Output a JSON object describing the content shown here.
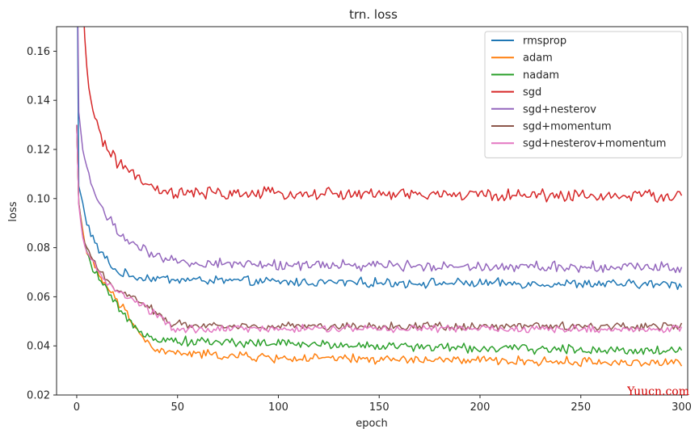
{
  "chart_data": {
    "type": "line",
    "title": "trn. loss",
    "xlabel": "epoch",
    "ylabel": "loss",
    "xlim": [
      -10,
      303
    ],
    "ylim": [
      0.02,
      0.17
    ],
    "x_ticks": [
      0,
      50,
      100,
      150,
      200,
      250,
      300
    ],
    "y_ticks": [
      0.02,
      0.04,
      0.06,
      0.08,
      0.1,
      0.12,
      0.14,
      0.16
    ],
    "y_tick_labels": [
      "0.02",
      "0.04",
      "0.06",
      "0.08",
      "0.10",
      "0.12",
      "0.14",
      "0.16"
    ],
    "legend_position": "top-right",
    "grid": false,
    "series": [
      {
        "name": "rmsprop",
        "color": "#1f77b4",
        "start": 0.22,
        "anchors": [
          [
            1,
            0.105
          ],
          [
            3,
            0.098
          ],
          [
            5,
            0.09
          ],
          [
            10,
            0.08
          ],
          [
            15,
            0.075
          ],
          [
            20,
            0.07
          ],
          [
            30,
            0.068
          ],
          [
            50,
            0.067
          ],
          [
            100,
            0.066
          ],
          [
            200,
            0.0655
          ],
          [
            300,
            0.065
          ]
        ],
        "noise": 0.0015
      },
      {
        "name": "adam",
        "color": "#ff7f0e",
        "start": 0.13,
        "anchors": [
          [
            1,
            0.098
          ],
          [
            3,
            0.087
          ],
          [
            5,
            0.078
          ],
          [
            10,
            0.07
          ],
          [
            15,
            0.064
          ],
          [
            20,
            0.058
          ],
          [
            25,
            0.053
          ],
          [
            30,
            0.047
          ],
          [
            35,
            0.041
          ],
          [
            40,
            0.038
          ],
          [
            50,
            0.037
          ],
          [
            100,
            0.035
          ],
          [
            200,
            0.034
          ],
          [
            300,
            0.033
          ]
        ],
        "noise": 0.0015
      },
      {
        "name": "nadam",
        "color": "#2ca02c",
        "start": 0.13,
        "anchors": [
          [
            1,
            0.098
          ],
          [
            3,
            0.085
          ],
          [
            5,
            0.077
          ],
          [
            10,
            0.069
          ],
          [
            15,
            0.062
          ],
          [
            20,
            0.056
          ],
          [
            25,
            0.05
          ],
          [
            30,
            0.047
          ],
          [
            40,
            0.043
          ],
          [
            50,
            0.042
          ],
          [
            100,
            0.041
          ],
          [
            200,
            0.039
          ],
          [
            300,
            0.038
          ]
        ],
        "noise": 0.0015
      },
      {
        "name": "sgd",
        "color": "#d62728",
        "start": 0.3,
        "anchors": [
          [
            2,
            0.2
          ],
          [
            4,
            0.165
          ],
          [
            6,
            0.145
          ],
          [
            10,
            0.13
          ],
          [
            15,
            0.12
          ],
          [
            20,
            0.115
          ],
          [
            25,
            0.112
          ],
          [
            30,
            0.108
          ],
          [
            40,
            0.103
          ],
          [
            50,
            0.102
          ],
          [
            100,
            0.102
          ],
          [
            200,
            0.1015
          ],
          [
            300,
            0.101
          ]
        ],
        "noise": 0.002
      },
      {
        "name": "sgd+nesterov",
        "color": "#9467bd",
        "start": 0.22,
        "anchors": [
          [
            1,
            0.135
          ],
          [
            3,
            0.12
          ],
          [
            5,
            0.112
          ],
          [
            10,
            0.1
          ],
          [
            15,
            0.093
          ],
          [
            20,
            0.087
          ],
          [
            25,
            0.083
          ],
          [
            30,
            0.08
          ],
          [
            40,
            0.076
          ],
          [
            50,
            0.074
          ],
          [
            100,
            0.073
          ],
          [
            200,
            0.0725
          ],
          [
            300,
            0.072
          ]
        ],
        "noise": 0.0017
      },
      {
        "name": "sgd+momentum",
        "color": "#8c564b",
        "start": 0.13,
        "anchors": [
          [
            1,
            0.098
          ],
          [
            3,
            0.085
          ],
          [
            5,
            0.079
          ],
          [
            10,
            0.072
          ],
          [
            15,
            0.067
          ],
          [
            20,
            0.063
          ],
          [
            30,
            0.059
          ],
          [
            40,
            0.053
          ],
          [
            48,
            0.049
          ],
          [
            60,
            0.0485
          ],
          [
            100,
            0.048
          ],
          [
            200,
            0.048
          ],
          [
            300,
            0.048
          ]
        ],
        "noise": 0.0013
      },
      {
        "name": "sgd+nesterov+momentum",
        "color": "#e377c2",
        "start": 0.13,
        "anchors": [
          [
            1,
            0.097
          ],
          [
            3,
            0.084
          ],
          [
            5,
            0.078
          ],
          [
            10,
            0.071
          ],
          [
            15,
            0.066
          ],
          [
            20,
            0.062
          ],
          [
            30,
            0.058
          ],
          [
            40,
            0.052
          ],
          [
            48,
            0.047
          ],
          [
            60,
            0.0465
          ],
          [
            100,
            0.047
          ],
          [
            200,
            0.047
          ],
          [
            300,
            0.0465
          ]
        ],
        "noise": 0.0013
      }
    ]
  },
  "watermark": "Yuucn.com"
}
